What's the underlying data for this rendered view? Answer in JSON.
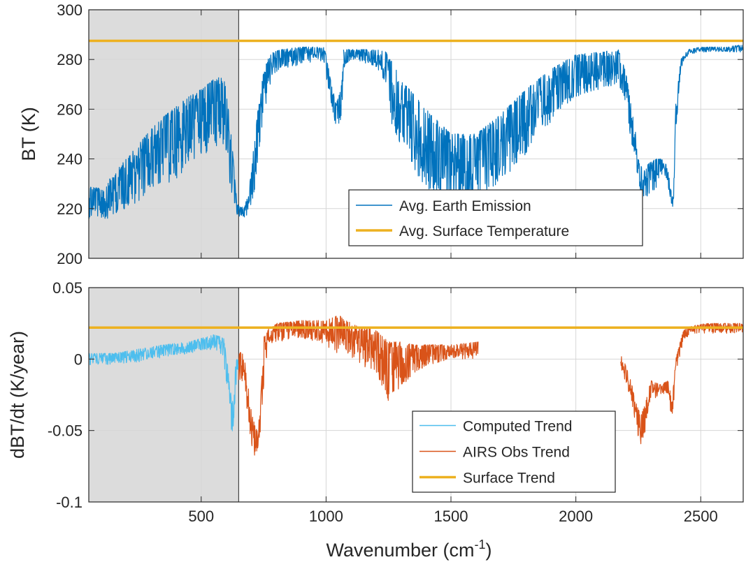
{
  "chart_data": [
    {
      "type": "line",
      "title": "",
      "xlabel": "",
      "ylabel": "BT (K)",
      "xlim": [
        50,
        2670
      ],
      "ylim": [
        200,
        300
      ],
      "xticks": [
        500,
        1000,
        1500,
        2000,
        2500
      ],
      "yticks": [
        200,
        220,
        240,
        260,
        280,
        300
      ],
      "show_xtick_labels": false,
      "grid": true,
      "legend": "lower-right",
      "shaded_region": [
        50,
        650
      ],
      "shaded_color": "#dcdcdc",
      "series": [
        {
          "name": "Avg. Earth Emission",
          "color": "#0072bd",
          "style": "spectrum",
          "segments": [
            {
              "x": [
                50,
                100,
                150,
                200,
                250,
                300,
                350,
                400,
                450,
                500,
                550,
                580,
                600,
                620,
                640,
                650
              ],
              "lo": [
                216,
                215,
                217,
                220,
                223,
                226,
                229,
                232,
                236,
                240,
                243,
                245,
                240,
                225,
                218,
                217
              ],
              "hi": [
                229,
                228,
                234,
                240,
                246,
                252,
                257,
                261,
                265,
                268,
                272,
                273,
                270,
                250,
                226,
                220
              ]
            },
            {
              "x": [
                650,
                670,
                690,
                710,
                730,
                750,
                770,
                790,
                820,
                900,
                960,
                990,
                1000,
                1020,
                1040,
                1060,
                1070
              ],
              "lo": [
                217,
                216,
                218,
                224,
                240,
                255,
                268,
                274,
                276,
                278,
                279,
                279,
                272,
                262,
                252,
                256,
                272
              ],
              "hi": [
                222,
                220,
                226,
                245,
                262,
                275,
                281,
                283,
                284,
                285,
                285,
                285,
                282,
                271,
                262,
                268,
                282
              ]
            },
            {
              "x": [
                1070,
                1100,
                1150,
                1200,
                1240,
                1260,
                1300,
                1350,
                1400,
                1500,
                1600,
                1700,
                1800,
                1900,
                2000,
                2100,
                2170
              ],
              "lo": [
                276,
                280,
                279,
                276,
                270,
                255,
                242,
                236,
                228,
                222,
                222,
                230,
                242,
                255,
                265,
                268,
                270
              ],
              "hi": [
                284,
                284,
                284,
                284,
                283,
                280,
                272,
                266,
                260,
                250,
                250,
                258,
                268,
                276,
                282,
                283,
                284
              ]
            },
            {
              "x": [
                2170,
                2200,
                2220,
                2240,
                2250,
                2270,
                2290,
                2320,
                2350,
                2365,
                2380,
                2390,
                2400,
                2420,
                2450,
                2500,
                2550,
                2600,
                2670
              ],
              "lo": [
                270,
                262,
                248,
                238,
                230,
                223,
                225,
                228,
                232,
                232,
                222,
                220,
                250,
                276,
                282,
                283,
                283,
                283,
                283
              ],
              "hi": [
                284,
                275,
                262,
                250,
                240,
                235,
                238,
                240,
                240,
                238,
                228,
                224,
                262,
                280,
                284,
                285,
                285,
                285,
                286
              ]
            }
          ]
        },
        {
          "name": "Avg. Surface Temperature",
          "color": "#edb120",
          "style": "flat",
          "x": [
            50,
            2670
          ],
          "y": [
            287.5,
            287.5
          ]
        }
      ]
    },
    {
      "type": "line",
      "title": "",
      "xlabel": "Wavenumber (cm",
      "xlabel_sup": "-1",
      "xlabel_end": ")",
      "ylabel": "dBT/dt (K/year)",
      "xlim": [
        50,
        2670
      ],
      "ylim": [
        -0.1,
        0.05
      ],
      "xticks": [
        500,
        1000,
        1500,
        2000,
        2500
      ],
      "yticks": [
        -0.1,
        -0.05,
        0,
        0.05
      ],
      "ytick_labels": [
        "-0.1",
        "-0.05",
        "0",
        "0.05"
      ],
      "show_xtick_labels": true,
      "grid": true,
      "legend": "lower-right",
      "shaded_region": [
        50,
        650
      ],
      "shaded_color": "#dcdcdc",
      "series": [
        {
          "name": "Computed Trend",
          "color": "#4dbeee",
          "style": "spectrum",
          "segments": [
            {
              "x": [
                50,
                150,
                250,
                350,
                450,
                550,
                590,
                610,
                625,
                640,
                650
              ],
              "lo": [
                -0.004,
                -0.004,
                -0.002,
                0.001,
                0.004,
                0.007,
                0.0,
                -0.035,
                -0.055,
                -0.02,
                -0.005
              ],
              "hi": [
                0.004,
                0.004,
                0.007,
                0.01,
                0.012,
                0.017,
                0.015,
                -0.01,
                -0.03,
                0.0,
                0.0
              ]
            }
          ]
        },
        {
          "name": "AIRS Obs Trend",
          "color": "#d95319",
          "style": "spectrum",
          "segments": [
            {
              "x": [
                650,
                670,
                690,
                705,
                720,
                735,
                750,
                770,
                800,
                900,
                1000,
                1040,
                1060,
                1100,
                1200,
                1250,
                1300,
                1350,
                1400,
                1500,
                1610
              ],
              "lo": [
                -0.03,
                -0.015,
                -0.045,
                -0.065,
                -0.07,
                -0.06,
                -0.02,
                0.01,
                0.012,
                0.015,
                0.01,
                0.002,
                0.012,
                0.0,
                -0.01,
                -0.03,
                -0.02,
                -0.01,
                -0.005,
                0.0,
                0.0
              ],
              "hi": [
                0.005,
                0.004,
                -0.02,
                -0.04,
                -0.05,
                -0.04,
                0.015,
                0.022,
                0.025,
                0.027,
                0.027,
                0.03,
                0.03,
                0.025,
                0.02,
                0.012,
                0.012,
                0.01,
                0.01,
                0.01,
                0.012
              ]
            },
            {
              "x": [
                2180,
                2200,
                2220,
                2240,
                2260,
                2280,
                2300,
                2340,
                2370,
                2385,
                2400,
                2430,
                2460,
                2520,
                2600,
                2670
              ],
              "lo": [
                -0.005,
                -0.02,
                -0.035,
                -0.05,
                -0.06,
                -0.05,
                -0.03,
                -0.025,
                -0.025,
                -0.05,
                -0.01,
                0.012,
                0.018,
                0.018,
                0.018,
                0.018
              ],
              "hi": [
                0.005,
                -0.005,
                -0.015,
                -0.03,
                -0.04,
                -0.03,
                -0.015,
                -0.018,
                -0.015,
                -0.03,
                0.0,
                0.02,
                0.023,
                0.025,
                0.025,
                0.025
              ]
            }
          ]
        },
        {
          "name": "Surface Trend",
          "color": "#edb120",
          "style": "flat",
          "x": [
            50,
            2670
          ],
          "y": [
            0.022,
            0.022
          ]
        }
      ]
    }
  ]
}
